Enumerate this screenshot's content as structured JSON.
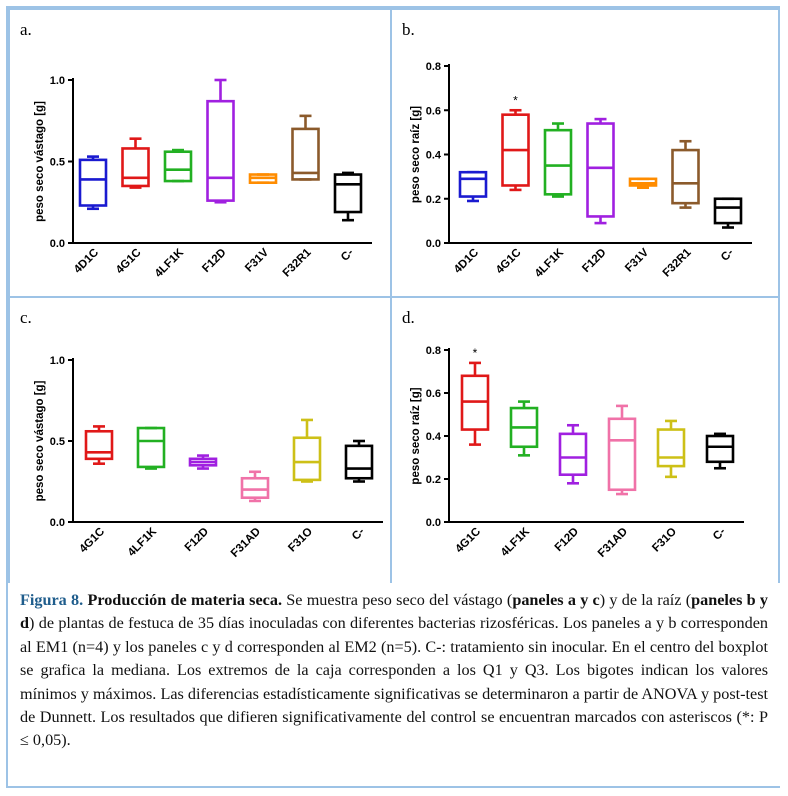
{
  "panels": [
    {
      "label": "a.",
      "ylabel": "peso seco vástago [g]"
    },
    {
      "label": "b.",
      "ylabel": "peso seco raíz [g]"
    },
    {
      "label": "c.",
      "ylabel": "peso seco vástago [g]"
    },
    {
      "label": "d.",
      "ylabel": "peso seco raíz [g]"
    }
  ],
  "caption": {
    "figure": "Figura 8.",
    "title": "Producción de materia seca.",
    "s1": " Se muestra peso seco del vástago (",
    "b1": "paneles a y c",
    "s2": ") y de la raíz (",
    "b2": "paneles b y d",
    "s3": ") de plantas de festuca de 35 días inoculadas con diferentes bacterias rizosféricas. Los paneles a y b corresponden al EM1 (n=4) y los paneles c y d corresponden al EM2 (n=5). C-: tratamiento sin inocular. En el centro del boxplot se grafica la mediana. Los extremos de la caja corresponden a los Q1 y Q3. Los bigotes indican los valores mínimos y máximos. Las diferencias estadísticamente significativas se determinaron a partir de ANOVA y post-test de Dunnett. Los resultados que difieren significativamente del control se encuentran marcados con asteriscos (*: P ≤ 0,05)."
  },
  "chart_data": [
    {
      "type": "box",
      "panel": "a.",
      "ylabel": "peso seco vástago [g]",
      "ylim": [
        0,
        1.0
      ],
      "yticks": [
        "0.0",
        "0.5",
        "1.0"
      ],
      "categories": [
        "4D1C",
        "4G1C",
        "4LF1K",
        "F12D",
        "F31V",
        "F32R1",
        "C-"
      ],
      "colors": [
        "#1a1ad0",
        "#e01818",
        "#22b022",
        "#a020e0",
        "#ff8c00",
        "#8b5a2b",
        "#000000"
      ],
      "boxes": [
        {
          "min": 0.21,
          "q1": 0.23,
          "median": 0.39,
          "q3": 0.51,
          "max": 0.53
        },
        {
          "min": 0.34,
          "q1": 0.35,
          "median": 0.4,
          "q3": 0.58,
          "max": 0.64
        },
        {
          "min": 0.38,
          "q1": 0.38,
          "median": 0.45,
          "q3": 0.56,
          "max": 0.57
        },
        {
          "min": 0.25,
          "q1": 0.26,
          "median": 0.4,
          "q3": 0.87,
          "max": 1.0
        },
        {
          "min": 0.37,
          "q1": 0.37,
          "median": 0.4,
          "q3": 0.42,
          "max": 0.42
        },
        {
          "min": 0.39,
          "q1": 0.39,
          "median": 0.43,
          "q3": 0.7,
          "max": 0.78
        },
        {
          "min": 0.14,
          "q1": 0.19,
          "median": 0.36,
          "q3": 0.42,
          "max": 0.43
        }
      ],
      "significant": []
    },
    {
      "type": "box",
      "panel": "b.",
      "ylabel": "peso seco raíz [g]",
      "ylim": [
        0,
        0.8
      ],
      "yticks": [
        "0.0",
        "0.2",
        "0.4",
        "0.6",
        "0.8"
      ],
      "categories": [
        "4D1C",
        "4G1C",
        "4LF1K",
        "F12D",
        "F31V",
        "F32R1",
        "C-"
      ],
      "colors": [
        "#1a1ad0",
        "#e01818",
        "#22b022",
        "#a020e0",
        "#ff8c00",
        "#8b5a2b",
        "#000000"
      ],
      "boxes": [
        {
          "min": 0.19,
          "q1": 0.21,
          "median": 0.29,
          "q3": 0.32,
          "max": 0.32
        },
        {
          "min": 0.24,
          "q1": 0.26,
          "median": 0.42,
          "q3": 0.58,
          "max": 0.6
        },
        {
          "min": 0.21,
          "q1": 0.22,
          "median": 0.35,
          "q3": 0.51,
          "max": 0.54
        },
        {
          "min": 0.09,
          "q1": 0.12,
          "median": 0.34,
          "q3": 0.54,
          "max": 0.56
        },
        {
          "min": 0.25,
          "q1": 0.26,
          "median": 0.27,
          "q3": 0.29,
          "max": 0.29
        },
        {
          "min": 0.16,
          "q1": 0.18,
          "median": 0.27,
          "q3": 0.42,
          "max": 0.46
        },
        {
          "min": 0.07,
          "q1": 0.09,
          "median": 0.16,
          "q3": 0.2,
          "max": 0.2
        }
      ],
      "significant": [
        "4G1C"
      ]
    },
    {
      "type": "box",
      "panel": "c.",
      "ylabel": "peso seco vástago [g]",
      "ylim": [
        0,
        1.0
      ],
      "yticks": [
        "0.0",
        "0.5",
        "1.0"
      ],
      "categories": [
        "4G1C",
        "4LF1K",
        "F12D",
        "F31AD",
        "F31O",
        "C-"
      ],
      "colors": [
        "#e01818",
        "#22b022",
        "#a020e0",
        "#f072a8",
        "#cdc017",
        "#000000"
      ],
      "boxes": [
        {
          "min": 0.36,
          "q1": 0.39,
          "median": 0.43,
          "q3": 0.56,
          "max": 0.59
        },
        {
          "min": 0.33,
          "q1": 0.34,
          "median": 0.5,
          "q3": 0.58,
          "max": 0.58
        },
        {
          "min": 0.33,
          "q1": 0.35,
          "median": 0.37,
          "q3": 0.39,
          "max": 0.41
        },
        {
          "min": 0.13,
          "q1": 0.15,
          "median": 0.2,
          "q3": 0.27,
          "max": 0.31
        },
        {
          "min": 0.25,
          "q1": 0.26,
          "median": 0.37,
          "q3": 0.52,
          "max": 0.63
        },
        {
          "min": 0.25,
          "q1": 0.27,
          "median": 0.33,
          "q3": 0.47,
          "max": 0.5
        }
      ],
      "significant": []
    },
    {
      "type": "box",
      "panel": "d.",
      "ylabel": "peso seco raíz [g]",
      "ylim": [
        0,
        0.8
      ],
      "yticks": [
        "0.0",
        "0.2",
        "0.4",
        "0.6",
        "0.8"
      ],
      "categories": [
        "4G1C",
        "4LF1K",
        "F12D",
        "F31AD",
        "F31O",
        "C-"
      ],
      "colors": [
        "#e01818",
        "#22b022",
        "#a020e0",
        "#f072a8",
        "#cdc017",
        "#000000"
      ],
      "boxes": [
        {
          "min": 0.36,
          "q1": 0.43,
          "median": 0.56,
          "q3": 0.68,
          "max": 0.74
        },
        {
          "min": 0.31,
          "q1": 0.35,
          "median": 0.44,
          "q3": 0.53,
          "max": 0.56
        },
        {
          "min": 0.18,
          "q1": 0.22,
          "median": 0.3,
          "q3": 0.41,
          "max": 0.45
        },
        {
          "min": 0.13,
          "q1": 0.15,
          "median": 0.38,
          "q3": 0.48,
          "max": 0.54
        },
        {
          "min": 0.21,
          "q1": 0.26,
          "median": 0.3,
          "q3": 0.43,
          "max": 0.47
        },
        {
          "min": 0.25,
          "q1": 0.28,
          "median": 0.35,
          "q3": 0.4,
          "max": 0.41
        }
      ],
      "significant": [
        "4G1C"
      ]
    }
  ]
}
